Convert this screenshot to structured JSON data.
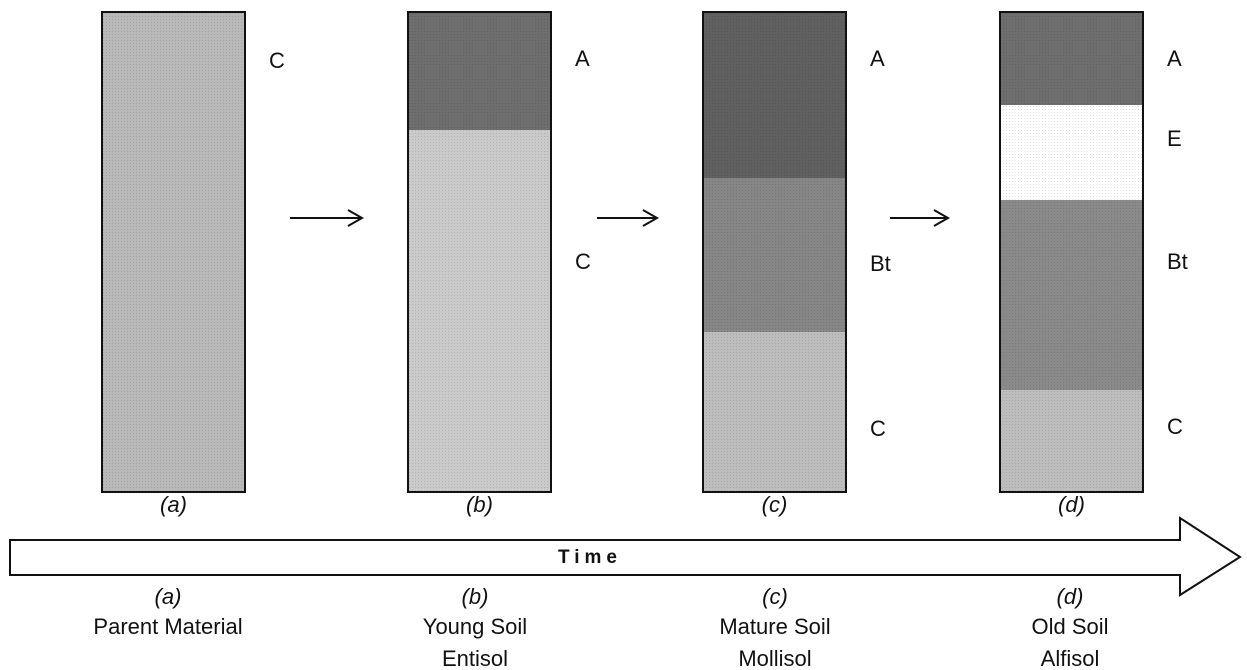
{
  "columns": [
    {
      "horizons": [
        "C"
      ],
      "letter": "(a)",
      "caption": {
        "letter": "(a)",
        "lines": [
          "Parent Material"
        ]
      }
    },
    {
      "horizons": [
        "A",
        "C"
      ],
      "letter": "(b)",
      "caption": {
        "letter": "(b)",
        "lines": [
          "Young Soil",
          "Entisol"
        ]
      }
    },
    {
      "horizons": [
        "A",
        "Bt",
        "C"
      ],
      "letter": "(c)",
      "caption": {
        "letter": "(c)",
        "lines": [
          "Mature Soil",
          "Mollisol"
        ]
      }
    },
    {
      "horizons": [
        "A",
        "E",
        "Bt",
        "C"
      ],
      "letter": "(d)",
      "caption": {
        "letter": "(d)",
        "lines": [
          "Old Soil",
          "Alfisol"
        ]
      }
    }
  ],
  "timeline": {
    "label": "Time"
  }
}
